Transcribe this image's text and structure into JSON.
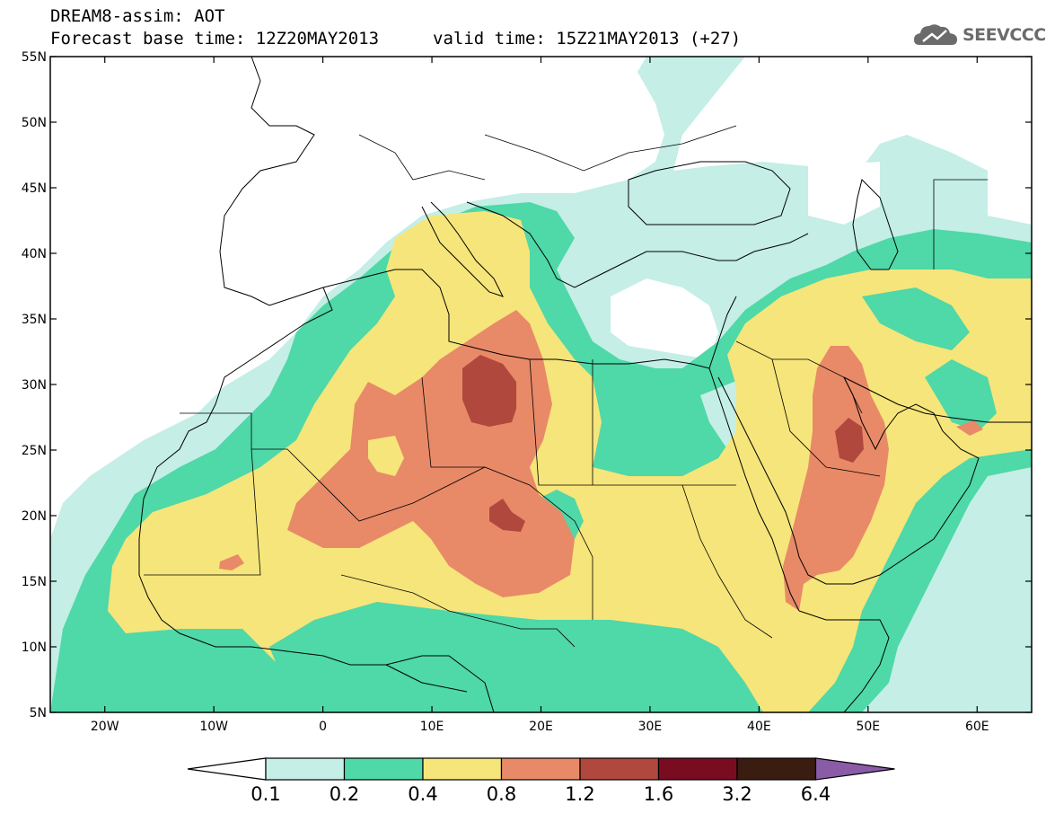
{
  "header": {
    "line1": "DREAM8-assim: AOT",
    "line2_left": "Forecast base time: 12Z20MAY2013",
    "line2_right": "valid time: 15Z21MAY2013 (+27)",
    "logo_text": "SEEVCCC"
  },
  "map": {
    "lon_range": [
      -25,
      65
    ],
    "lat_range": [
      5,
      55
    ],
    "lat_ticks": [
      "55N",
      "50N",
      "45N",
      "40N",
      "35N",
      "30N",
      "25N",
      "20N",
      "15N",
      "10N",
      "5N"
    ],
    "lat_values": [
      55,
      50,
      45,
      40,
      35,
      30,
      25,
      20,
      15,
      10,
      5
    ],
    "lon_ticks": [
      "20W",
      "10W",
      "0",
      "10E",
      "20E",
      "30E",
      "40E",
      "50E",
      "60E"
    ],
    "lon_values": [
      -20,
      -10,
      0,
      10,
      20,
      30,
      40,
      50,
      60
    ]
  },
  "colorbar": {
    "labels": [
      "0.1",
      "0.2",
      "0.4",
      "0.8",
      "1.2",
      "1.6",
      "3.2",
      "6.4"
    ],
    "colors": [
      "#c4eee6",
      "#4fd8a8",
      "#f6e57a",
      "#e88a68",
      "#b0483e",
      "#7a0c22",
      "#3a1c10",
      "#8a5ca8"
    ]
  }
}
